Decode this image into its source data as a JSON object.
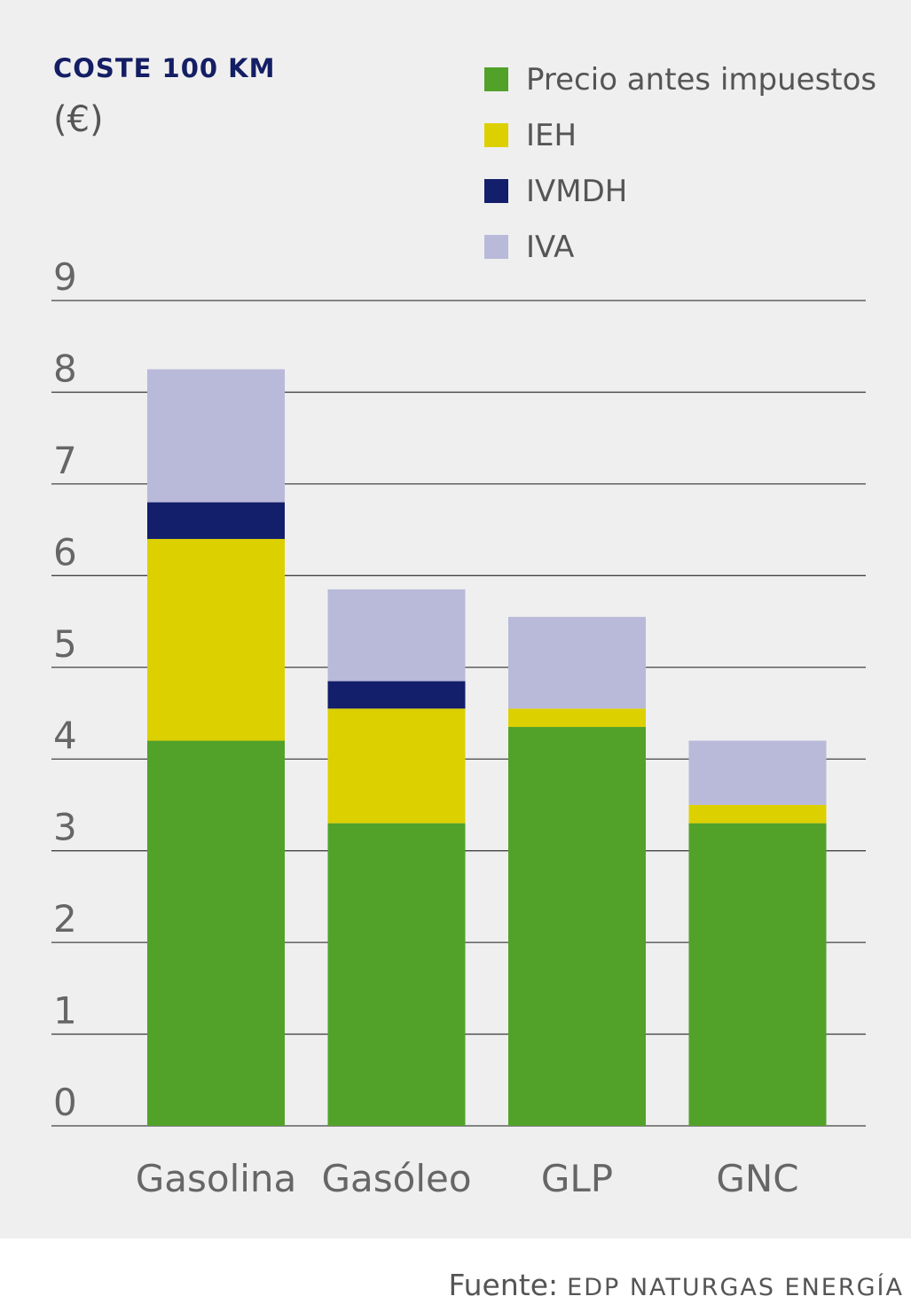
{
  "chart_data": {
    "type": "bar",
    "stacked": true,
    "title": "COSTE 100 KM",
    "unit": "(€)",
    "categories": [
      "Gasolina",
      "Gasóleo",
      "GLP",
      "GNC"
    ],
    "series": [
      {
        "name": "Precio antes impuestos",
        "color": "#52a22a",
        "values": [
          4.2,
          3.3,
          4.35,
          3.3
        ]
      },
      {
        "name": "IEH",
        "color": "#dcd000",
        "values": [
          2.2,
          1.25,
          0.2,
          0.2
        ]
      },
      {
        "name": "IVMDH",
        "color": "#131f6b",
        "values": [
          0.4,
          0.3,
          0.0,
          0.0
        ]
      },
      {
        "name": "IVA",
        "color": "#b9b9da",
        "values": [
          1.45,
          1.0,
          1.0,
          0.7
        ]
      }
    ],
    "yticks": [
      "0",
      "1",
      "2",
      "3",
      "4",
      "5",
      "6",
      "7",
      "8",
      "9"
    ],
    "ylim": [
      0,
      9
    ],
    "grid": true,
    "legend_position": "top-right"
  },
  "source": {
    "label": "Fuente:",
    "org": "EDP NATURGAS ENERGÍA"
  }
}
